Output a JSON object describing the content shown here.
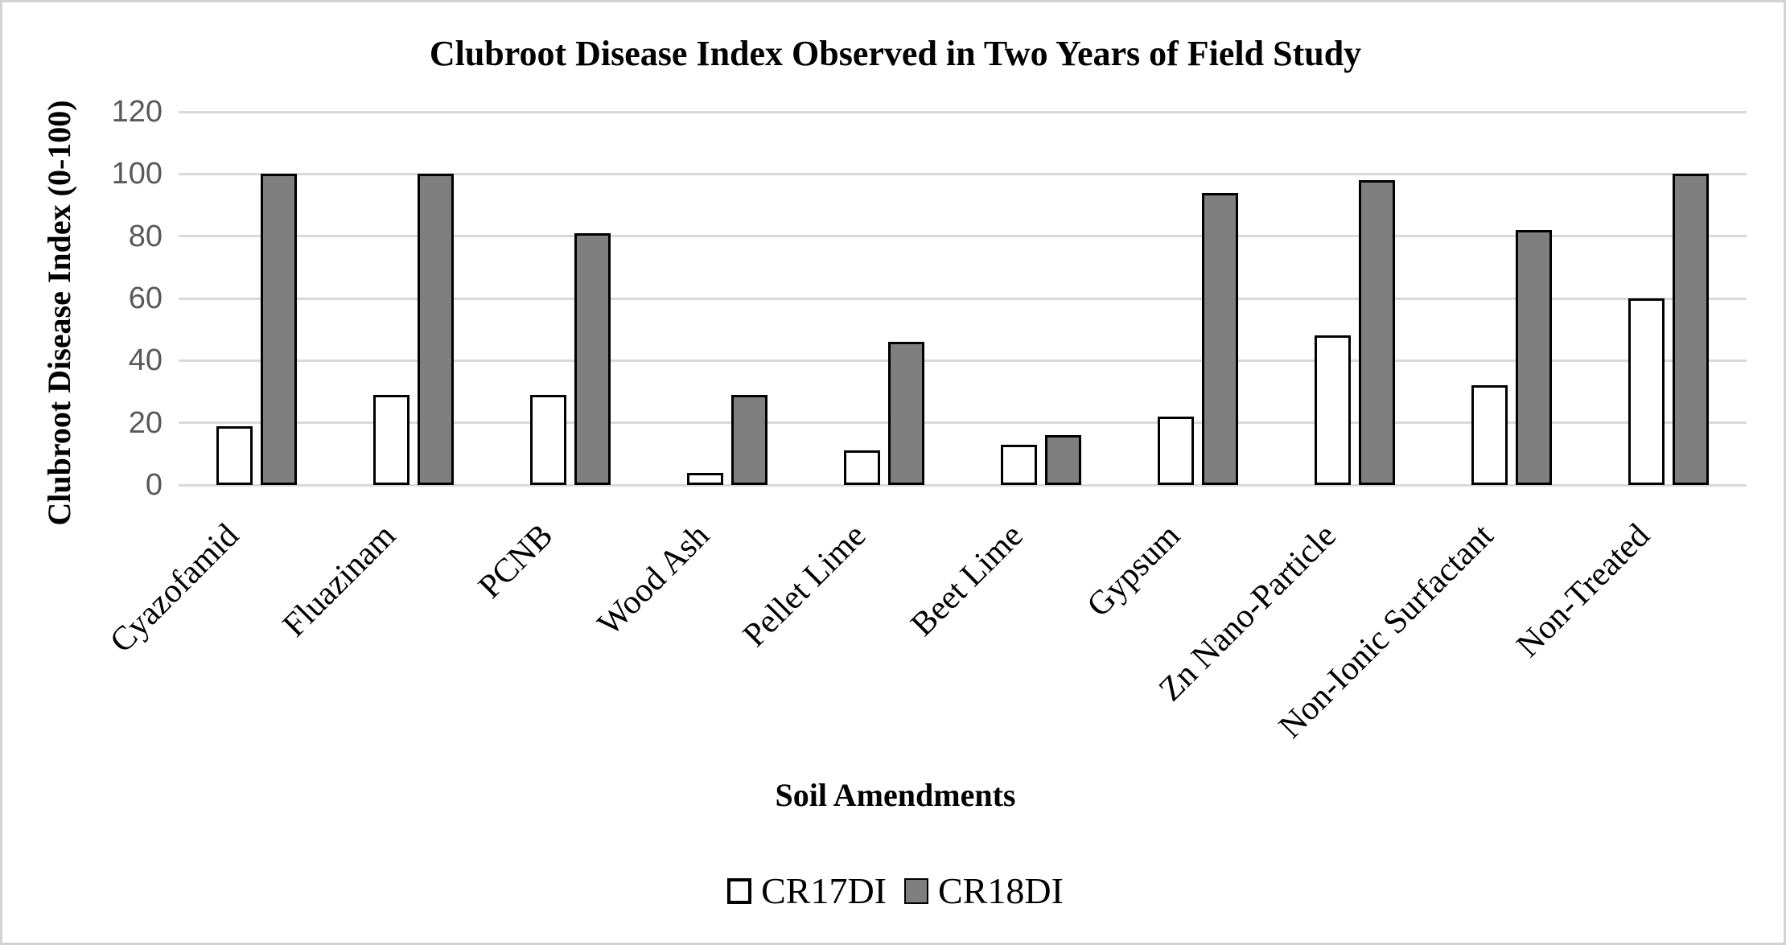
{
  "chart_data": {
    "type": "bar",
    "title": "Clubroot Disease Index Observed in Two Years of Field Study",
    "xlabel": "Soil Amendments",
    "ylabel": "Clubroot Disease Index (0-100)",
    "categories": [
      "Cyazofamid",
      "Fluazinam",
      "PCNB",
      "Wood Ash",
      "Pellet Lime",
      "Beet Lime",
      "Gypsum",
      "Zn Nano-Particle",
      "Non-Ionic Surfactant",
      "Non-Treated"
    ],
    "series": [
      {
        "name": "CR17DI",
        "fill": "#FFFFFF",
        "values": [
          19,
          29,
          29,
          4,
          11,
          13,
          22,
          48,
          32,
          60
        ]
      },
      {
        "name": "CR18DI",
        "fill": "#7F7F7F",
        "values": [
          100,
          100,
          81,
          29,
          46,
          16,
          94,
          98,
          82,
          100
        ]
      }
    ],
    "ylim": [
      0,
      120
    ],
    "yticks": [
      0,
      20,
      40,
      60,
      80,
      100,
      120
    ],
    "grid": true,
    "legend_position": "bottom",
    "colors": {
      "bar_border": "#000000",
      "gridline": "#D9D9D9",
      "tick_label": "#595959",
      "frame_border": "#D3D3D3",
      "text": "#000000"
    }
  }
}
